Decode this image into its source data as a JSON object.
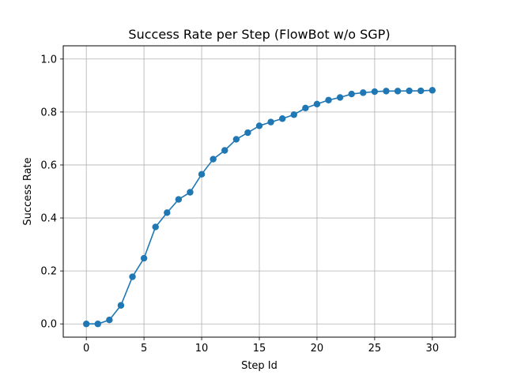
{
  "chart_data": {
    "type": "line",
    "title": "Success Rate per Step (FlowBot w/o SGP)",
    "xlabel": "Step Id",
    "ylabel": "Success Rate",
    "xlim": [
      -2,
      32
    ],
    "ylim": [
      -0.05,
      1.05
    ],
    "xticks": [
      0,
      5,
      10,
      15,
      20,
      25,
      30
    ],
    "yticks": [
      0.0,
      0.2,
      0.4,
      0.6,
      0.8,
      1.0
    ],
    "xtick_labels": [
      "0",
      "5",
      "10",
      "15",
      "20",
      "25",
      "30"
    ],
    "ytick_labels": [
      "0.0",
      "0.2",
      "0.4",
      "0.6",
      "0.8",
      "1.0"
    ],
    "grid": true,
    "legend": "none",
    "x": [
      0,
      1,
      2,
      3,
      4,
      5,
      6,
      7,
      8,
      9,
      10,
      11,
      12,
      13,
      14,
      15,
      16,
      17,
      18,
      19,
      20,
      21,
      22,
      23,
      24,
      25,
      26,
      27,
      28,
      29,
      30
    ],
    "series": [
      {
        "name": "",
        "color": "#1f77b4",
        "marker": "circle",
        "values": [
          0.0,
          0.0,
          0.015,
          0.07,
          0.178,
          0.248,
          0.366,
          0.42,
          0.47,
          0.497,
          0.565,
          0.622,
          0.655,
          0.697,
          0.722,
          0.748,
          0.762,
          0.775,
          0.79,
          0.815,
          0.83,
          0.845,
          0.855,
          0.868,
          0.873,
          0.877,
          0.879,
          0.879,
          0.88,
          0.88,
          0.882
        ]
      }
    ]
  }
}
